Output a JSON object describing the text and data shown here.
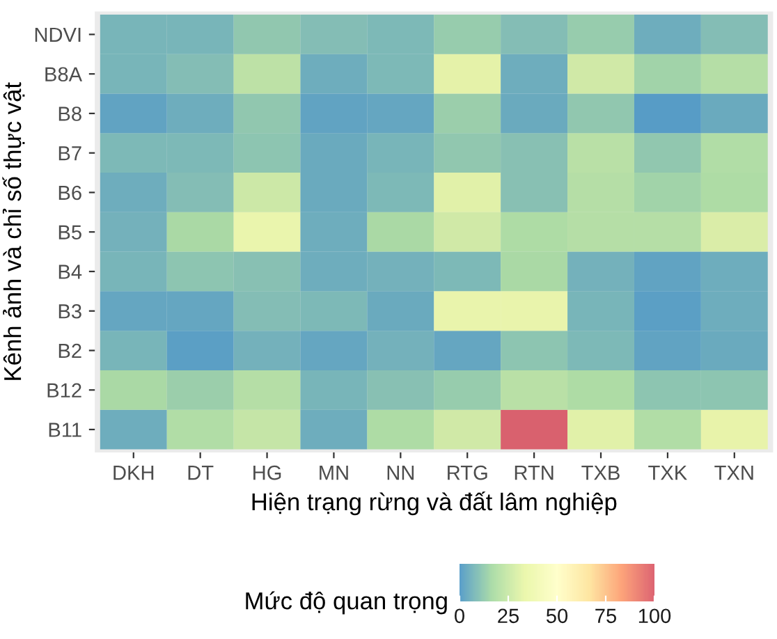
{
  "chart_data": {
    "type": "heatmap",
    "xlabel": "Hiện trạng rừng và đất lâm nghiệp",
    "ylabel": "Kênh ảnh và chỉ số thực vật",
    "clabel": "Mức độ quan trọng",
    "categories": [
      "DKH",
      "DT",
      "HG",
      "MN",
      "NN",
      "RTG",
      "RTN",
      "TXB",
      "TXK",
      "TXN"
    ],
    "y_categories": [
      "NDVI",
      "B8A",
      "B8",
      "B7",
      "B6",
      "B5",
      "B4",
      "B3",
      "B2",
      "B12",
      "B11"
    ],
    "cells": [
      [
        7,
        7,
        12,
        9,
        8,
        13,
        9,
        13,
        5,
        9
      ],
      [
        7,
        9,
        22,
        5,
        8,
        33,
        5,
        27,
        15,
        20
      ],
      [
        2,
        5,
        12,
        2,
        3,
        14,
        4,
        12,
        0,
        4
      ],
      [
        8,
        8,
        11,
        4,
        7,
        12,
        10,
        21,
        12,
        19
      ],
      [
        5,
        9,
        26,
        4,
        8,
        32,
        10,
        20,
        15,
        18
      ],
      [
        6,
        17,
        36,
        5,
        17,
        27,
        18,
        20,
        20,
        30
      ],
      [
        7,
        11,
        10,
        5,
        6,
        8,
        17,
        6,
        2,
        5
      ],
      [
        3,
        3,
        9,
        8,
        4,
        35,
        35,
        7,
        1,
        5
      ],
      [
        7,
        1,
        6,
        3,
        6,
        3,
        11,
        8,
        2,
        4
      ],
      [
        17,
        14,
        20,
        7,
        10,
        13,
        21,
        18,
        11,
        11
      ],
      [
        5,
        19,
        24,
        5,
        18,
        27,
        100,
        32,
        19,
        34
      ]
    ],
    "clim": [
      0,
      100
    ],
    "cticks": [
      0,
      25,
      50,
      75,
      100
    ]
  }
}
